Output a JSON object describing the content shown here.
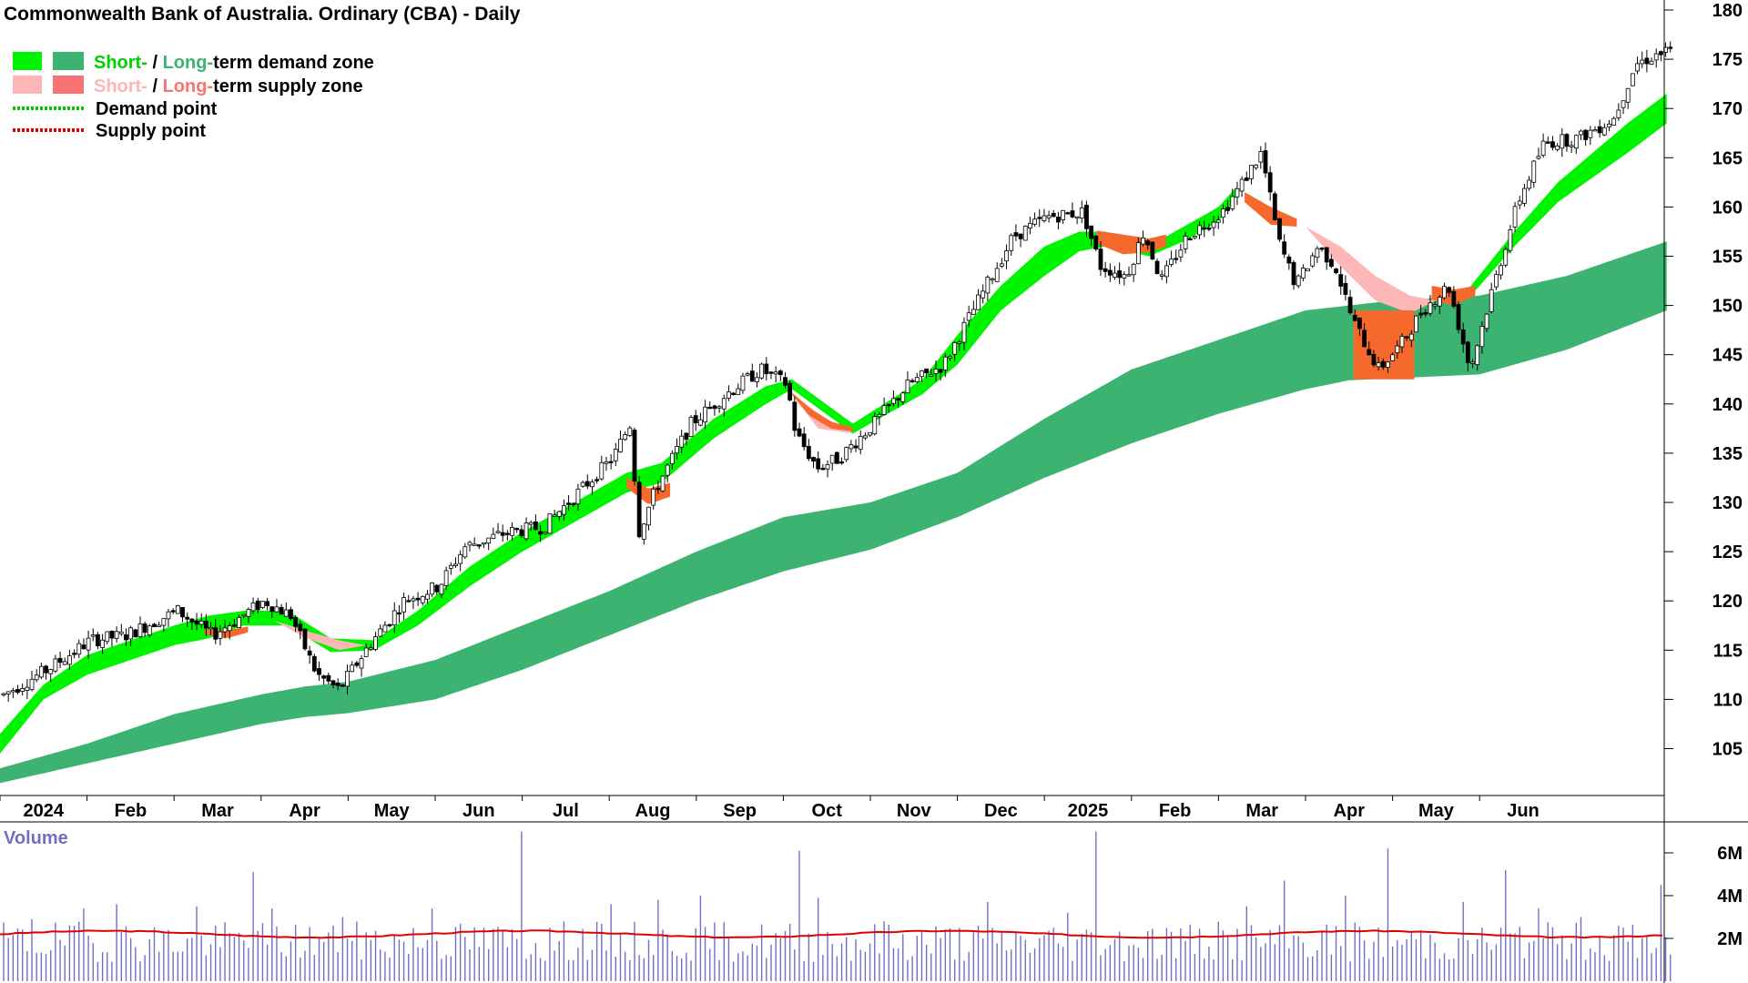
{
  "title": "Commonwealth Bank of Australia. Ordinary (CBA) - Daily",
  "colors": {
    "short_demand": "#00f400",
    "long_demand": "#3cb371",
    "short_supply": "#ffb6b6",
    "long_supply": "#f87373",
    "overlap_supply": "#f56a2c",
    "demand_point": "#00c800",
    "supply_point": "#e00000",
    "volume_bar": "#6f6fc8",
    "volume_avg": "#e00000",
    "volume_label": "#7070c0",
    "candle": "#000000"
  },
  "legend": {
    "row1": {
      "short": "Short-",
      "sep": " / ",
      "long": "Long-",
      "rest": "term demand zone"
    },
    "row2": {
      "short": "Short-",
      "sep": " / ",
      "long": "Long-",
      "rest": "term supply zone"
    },
    "row3": {
      "label": "Demand point",
      "icon": "green-dotted-line"
    },
    "row4": {
      "label": "Supply point",
      "icon": "red-dotted-line"
    }
  },
  "volume_label": "Volume",
  "chart_data": [
    {
      "type": "candlestick",
      "title": "Commonwealth Bank of Australia. Ordinary (CBA) - Daily",
      "y_axis": {
        "ticks": [
          "105",
          "110",
          "115",
          "120",
          "125",
          "130",
          "135",
          "140",
          "145",
          "150",
          "155",
          "160",
          "165",
          "170",
          "175",
          "180"
        ],
        "ylim": [
          100,
          180
        ],
        "position": "right"
      },
      "x_axis": {
        "ticks": [
          "2024",
          "Feb",
          "Mar",
          "Apr",
          "May",
          "Jun",
          "Jul",
          "Aug",
          "Sep",
          "Oct",
          "Nov",
          "Dec",
          "2025",
          "Feb",
          "Mar",
          "Apr",
          "May",
          "Jun"
        ]
      },
      "price_path": [
        {
          "m": 0.0,
          "p": 110.5
        },
        {
          "m": 0.5,
          "p": 113.0
        },
        {
          "m": 1.0,
          "p": 116.0
        },
        {
          "m": 1.4,
          "p": 116.5
        },
        {
          "m": 2.0,
          "p": 119.0
        },
        {
          "m": 2.4,
          "p": 116.5
        },
        {
          "m": 3.0,
          "p": 120.0
        },
        {
          "m": 3.3,
          "p": 118.5
        },
        {
          "m": 3.6,
          "p": 112.5
        },
        {
          "m": 3.85,
          "p": 111.0
        },
        {
          "m": 4.2,
          "p": 115.5
        },
        {
          "m": 4.6,
          "p": 120.0
        },
        {
          "m": 5.0,
          "p": 121.5
        },
        {
          "m": 5.3,
          "p": 125.5
        },
        {
          "m": 5.8,
          "p": 127.0
        },
        {
          "m": 6.2,
          "p": 127.5
        },
        {
          "m": 6.6,
          "p": 131.0
        },
        {
          "m": 7.0,
          "p": 134.5
        },
        {
          "m": 7.2,
          "p": 138.0
        },
        {
          "m": 7.3,
          "p": 127.0
        },
        {
          "m": 7.5,
          "p": 131.5
        },
        {
          "m": 7.9,
          "p": 138.0
        },
        {
          "m": 8.3,
          "p": 141.0
        },
        {
          "m": 8.7,
          "p": 143.5
        },
        {
          "m": 9.0,
          "p": 142.0
        },
        {
          "m": 9.1,
          "p": 137.0
        },
        {
          "m": 9.35,
          "p": 133.5
        },
        {
          "m": 9.6,
          "p": 134.5
        },
        {
          "m": 10.0,
          "p": 138.0
        },
        {
          "m": 10.4,
          "p": 142.0
        },
        {
          "m": 10.8,
          "p": 144.0
        },
        {
          "m": 11.2,
          "p": 150.5
        },
        {
          "m": 11.6,
          "p": 157.0
        },
        {
          "m": 12.0,
          "p": 159.0
        },
        {
          "m": 12.4,
          "p": 159.5
        },
        {
          "m": 12.6,
          "p": 154.0
        },
        {
          "m": 12.9,
          "p": 153.0
        },
        {
          "m": 13.1,
          "p": 157.5
        },
        {
          "m": 13.3,
          "p": 152.5
        },
        {
          "m": 13.6,
          "p": 157.0
        },
        {
          "m": 14.0,
          "p": 159.5
        },
        {
          "m": 14.2,
          "p": 162.0
        },
        {
          "m": 14.45,
          "p": 165.5
        },
        {
          "m": 14.65,
          "p": 156.5
        },
        {
          "m": 14.85,
          "p": 152.0
        },
        {
          "m": 15.1,
          "p": 156.0
        },
        {
          "m": 15.3,
          "p": 154.0
        },
        {
          "m": 15.5,
          "p": 148.5
        },
        {
          "m": 15.8,
          "p": 143.5
        },
        {
          "m": 16.05,
          "p": 146.0
        },
        {
          "m": 16.3,
          "p": 149.5
        },
        {
          "m": 16.6,
          "p": 152.0
        },
        {
          "m": 16.85,
          "p": 143.5
        },
        {
          "m": 17.1,
          "p": 151.5
        },
        {
          "m": 17.4,
          "p": 160.5
        },
        {
          "m": 17.7,
          "p": 166.5
        },
        {
          "m": 18.1,
          "p": 167.0
        },
        {
          "m": 18.5,
          "p": 169.0
        },
        {
          "m": 18.75,
          "p": 174.5
        },
        {
          "m": 19.0,
          "p": 175.5
        },
        {
          "m": 19.15,
          "p": 175.8
        }
      ],
      "demand_zones": {
        "short_term": {
          "x": [
            0,
            0.5,
            1,
            1.5,
            2,
            2.4,
            2.8,
            3.3,
            3.8,
            4.3,
            4.8,
            5.4,
            6,
            6.6,
            7.2,
            7.6,
            8.2,
            8.8,
            9.1,
            9.8,
            10.6,
            11,
            11.5,
            12,
            12.4,
            12.7,
            13.2,
            13.6,
            14,
            14.2
          ],
          "low": [
            104.5,
            110,
            112.5,
            114,
            115.5,
            116.2,
            117.5,
            117.5,
            114.8,
            115,
            117.5,
            121.5,
            125,
            128,
            131,
            132,
            136.5,
            140,
            141.5,
            137,
            141,
            144,
            149.5,
            153,
            155.5,
            156,
            155,
            156.5,
            158.5,
            161
          ],
          "high": [
            106.5,
            111.5,
            114.5,
            116,
            117.5,
            118.5,
            119,
            119,
            116.2,
            116,
            119,
            123.5,
            127,
            130,
            133,
            134,
            138.5,
            141.8,
            142.5,
            138,
            142.5,
            147,
            152,
            156,
            157.5,
            157.5,
            156,
            158,
            160,
            162
          ]
        },
        "short_term_late": {
          "x": [
            16.9,
            17.4,
            17.9,
            18.3,
            18.7,
            19.15
          ],
          "low": [
            151,
            156,
            160.5,
            163,
            165.5,
            168.5
          ],
          "high": [
            152,
            157.5,
            162.5,
            165.5,
            168.5,
            171.5
          ]
        },
        "long_term": {
          "x": [
            0,
            1,
            2,
            3,
            3.5,
            4,
            5,
            6,
            7,
            8,
            9,
            10,
            11,
            12,
            13,
            14,
            15,
            15.5,
            16,
            17,
            18,
            19.15
          ],
          "low": [
            101.5,
            103.5,
            105.5,
            107.5,
            108.2,
            108.6,
            110,
            113,
            116.5,
            120,
            123,
            125.2,
            128.5,
            132.5,
            136,
            139,
            141.5,
            142.4,
            142.6,
            143,
            145.5,
            149.5
          ],
          "high": [
            103,
            105.5,
            108.5,
            110.5,
            111.3,
            111.8,
            114,
            117.5,
            121,
            125,
            128.5,
            130,
            133,
            138.5,
            143.5,
            146.5,
            149.5,
            150,
            150.5,
            151,
            153,
            156.5
          ]
        }
      },
      "supply_zones": {
        "short_term": [
          {
            "x": [
              3.15,
              3.5,
              3.9,
              4.2
            ],
            "top": [
              118,
              117,
              116,
              115.5
            ],
            "bottom": [
              118,
              116.3,
              115,
              115.5
            ]
          },
          {
            "x": [
              9.05,
              9.4,
              9.8
            ],
            "top": [
              141.5,
              139,
              137
            ],
            "bottom": [
              141.5,
              137.5,
              137
            ]
          },
          {
            "x": [
              15.0,
              15.4,
              15.8,
              16.2,
              16.5
            ],
            "top": [
              158,
              156,
              153,
              151,
              150.5
            ],
            "bottom": [
              158,
              154,
              150.5,
              149.2,
              150.5
            ]
          }
        ],
        "overlap": [
          {
            "x": [
              2.35,
              2.6,
              2.85
            ],
            "top": [
              117.2,
              117.0,
              117.4
            ],
            "bottom": [
              116.6,
              116.2,
              116.8
            ]
          },
          {
            "x": [
              7.2,
              7.45,
              7.7
            ],
            "top": [
              132.5,
              131.4,
              132.0
            ],
            "bottom": [
              131.5,
              129.8,
              130.6
            ]
          },
          {
            "x": [
              9.05,
              9.3,
              9.55,
              9.8
            ],
            "top": [
              141.5,
              139.6,
              138.2,
              137.6
            ],
            "bottom": [
              141.5,
              138.8,
              137.5,
              137.2
            ]
          },
          {
            "x": [
              12.6,
              12.9,
              13.2,
              13.4
            ],
            "top": [
              157.6,
              157.2,
              156.8,
              157.2
            ],
            "bottom": [
              156.3,
              155.2,
              155.4,
              156.0
            ]
          },
          {
            "x": [
              14.3,
              14.6,
              14.9
            ],
            "top": [
              161.5,
              160.0,
              158.8
            ],
            "bottom": [
              160.5,
              158.2,
              158.0
            ]
          },
          {
            "x": [
              16.45,
              16.7,
              16.95
            ],
            "top": [
              152.0,
              151.6,
              152.0
            ],
            "bottom": [
              150.6,
              150.0,
              151.0
            ]
          }
        ],
        "long_overlap_box": {
          "x": [
            15.55,
            16.25
          ],
          "top": 149.5,
          "bottom": 142.5
        }
      },
      "volume": {
        "ticks": [
          "2M",
          "4M",
          "6M"
        ],
        "ylim": [
          0,
          8
        ],
        "average_level": 2.2,
        "spikes": [
          {
            "m": 0.3,
            "v": 2.9
          },
          {
            "m": 0.9,
            "v": 3.4
          },
          {
            "m": 1.3,
            "v": 3.6
          },
          {
            "m": 2.2,
            "v": 3.5
          },
          {
            "m": 2.85,
            "v": 5.1
          },
          {
            "m": 3.1,
            "v": 3.4
          },
          {
            "m": 3.9,
            "v": 3.0
          },
          {
            "m": 4.9,
            "v": 3.4
          },
          {
            "m": 5.95,
            "v": 7.0
          },
          {
            "m": 7.0,
            "v": 3.6
          },
          {
            "m": 7.5,
            "v": 3.8
          },
          {
            "m": 8.0,
            "v": 4.0
          },
          {
            "m": 9.15,
            "v": 6.1
          },
          {
            "m": 9.35,
            "v": 3.9
          },
          {
            "m": 10.1,
            "v": 2.8
          },
          {
            "m": 11.3,
            "v": 3.7
          },
          {
            "m": 12.2,
            "v": 3.2
          },
          {
            "m": 12.55,
            "v": 7.0
          },
          {
            "m": 14.3,
            "v": 3.5
          },
          {
            "m": 14.7,
            "v": 4.7
          },
          {
            "m": 15.4,
            "v": 4.0
          },
          {
            "m": 15.9,
            "v": 6.2
          },
          {
            "m": 16.75,
            "v": 3.7
          },
          {
            "m": 17.25,
            "v": 5.2
          },
          {
            "m": 17.65,
            "v": 3.4
          },
          {
            "m": 18.1,
            "v": 3.0
          },
          {
            "m": 19.05,
            "v": 4.5
          }
        ]
      }
    }
  ]
}
